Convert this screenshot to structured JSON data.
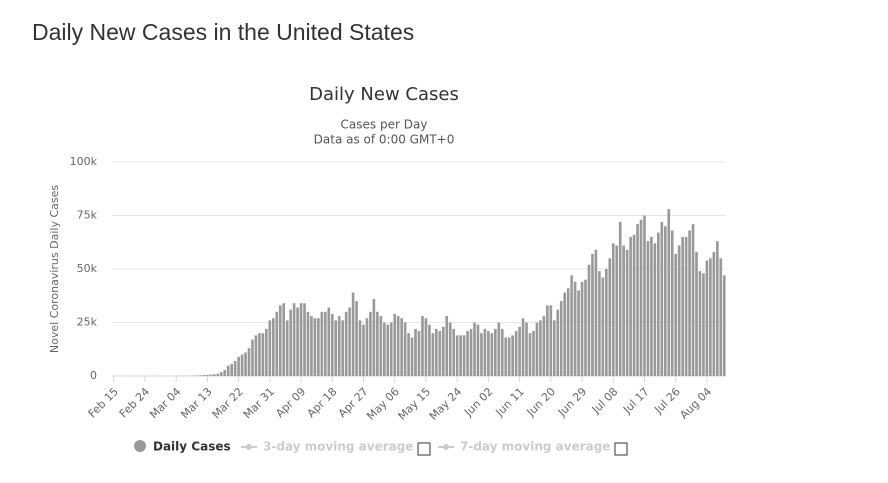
{
  "page_title": "Daily New Cases in the United States",
  "chart_data": {
    "type": "bar",
    "title": "Daily New Cases",
    "subtitle": [
      "Cases per Day",
      "Data as of 0:00 GMT+0"
    ],
    "y_label": "Novel Coronavirus Daily Cases",
    "ylim": [
      0,
      100000
    ],
    "yticks": [
      0,
      {
        "value": 25000,
        "label": "25k"
      },
      {
        "value": 50000,
        "label": "50k"
      },
      {
        "value": 75000,
        "label": "75k"
      },
      {
        "value": 100000,
        "label": "100k"
      }
    ],
    "grid": true,
    "categories": [
      "Feb 15",
      null,
      null,
      null,
      null,
      null,
      null,
      null,
      null,
      "Feb 24",
      null,
      null,
      null,
      null,
      null,
      null,
      null,
      null,
      "Mar 04",
      null,
      null,
      null,
      null,
      null,
      null,
      null,
      null,
      "Mar 13",
      null,
      null,
      null,
      null,
      null,
      null,
      null,
      null,
      "Mar 22",
      null,
      null,
      null,
      null,
      null,
      null,
      null,
      null,
      "Mar 31",
      null,
      null,
      null,
      null,
      null,
      null,
      null,
      null,
      "Apr 09",
      null,
      null,
      null,
      null,
      null,
      null,
      null,
      null,
      "Apr 18",
      null,
      null,
      null,
      null,
      null,
      null,
      null,
      null,
      "Apr 27",
      null,
      null,
      null,
      null,
      null,
      null,
      null,
      null,
      "May 06",
      null,
      null,
      null,
      null,
      null,
      null,
      null,
      null,
      "May 15",
      null,
      null,
      null,
      null,
      null,
      null,
      null,
      null,
      "May 24",
      null,
      null,
      null,
      null,
      null,
      null,
      null,
      null,
      "Jun 02",
      null,
      null,
      null,
      null,
      null,
      null,
      null,
      null,
      "Jun 11",
      null,
      null,
      null,
      null,
      null,
      null,
      null,
      null,
      "Jun 20",
      null,
      null,
      null,
      null,
      null,
      null,
      null,
      null,
      "Jun 29",
      null,
      null,
      null,
      null,
      null,
      null,
      null,
      null,
      "Jul 08",
      null,
      null,
      null,
      null,
      null,
      null,
      null,
      null,
      "Jul 17",
      null,
      null,
      null,
      null,
      null,
      null,
      null,
      null,
      "Jul 26",
      null,
      null,
      null,
      null,
      null,
      null,
      null,
      null,
      "Aug 04",
      null,
      null,
      null,
      null,
      null
    ],
    "series": [
      {
        "name": "Daily Cases",
        "color": "#999999",
        "values": [
          0,
          0,
          0,
          0,
          0,
          1,
          0,
          0,
          0,
          2,
          3,
          5,
          8,
          6,
          12,
          18,
          25,
          20,
          30,
          60,
          70,
          80,
          100,
          130,
          250,
          300,
          400,
          500,
          700,
          800,
          1100,
          1800,
          2800,
          4800,
          5600,
          7000,
          9000,
          10000,
          11000,
          13000,
          17000,
          19000,
          20000,
          20000,
          22000,
          26000,
          27000,
          30000,
          33000,
          34000,
          26000,
          31000,
          34000,
          32000,
          34000,
          34000,
          30000,
          28000,
          27000,
          27000,
          30000,
          30000,
          32000,
          29000,
          26000,
          28000,
          26000,
          30000,
          32000,
          39000,
          35000,
          26000,
          24000,
          27000,
          30000,
          36000,
          30000,
          28000,
          25000,
          24000,
          25000,
          29000,
          28000,
          27000,
          25000,
          20000,
          18000,
          22000,
          21000,
          28000,
          27000,
          24000,
          20000,
          22000,
          21000,
          23000,
          28000,
          25000,
          22000,
          19000,
          19000,
          19000,
          21000,
          22000,
          25000,
          24000,
          20000,
          22000,
          21000,
          20000,
          22000,
          25000,
          22000,
          18000,
          18000,
          19000,
          21000,
          23000,
          27000,
          25000,
          20000,
          21000,
          25000,
          26000,
          28000,
          33000,
          33000,
          26000,
          31000,
          35000,
          39000,
          41000,
          47000,
          44000,
          40000,
          44000,
          45000,
          52000,
          57000,
          59000,
          49000,
          46000,
          50000,
          55000,
          62000,
          61000,
          72000,
          61000,
          59000,
          65000,
          66000,
          71000,
          73000,
          75000,
          63000,
          65000,
          62000,
          67000,
          72000,
          70000,
          78000,
          68000,
          57000,
          61000,
          65000,
          65000,
          68000,
          71000,
          58000,
          49000,
          48000,
          54000,
          55000,
          58000,
          63000,
          55000,
          47000
        ]
      }
    ],
    "inactive_legend": [
      "3-day moving average",
      "7-day moving average"
    ]
  }
}
